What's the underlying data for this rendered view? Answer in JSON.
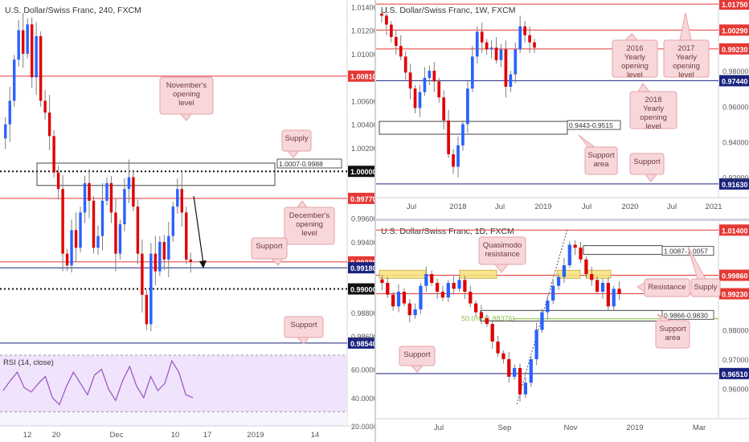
{
  "colors": {
    "up": "#2962ff",
    "down": "#e00000",
    "wick": "#7f7f7f",
    "resistance": "#e53935",
    "support": "#1a237e",
    "note_bg": "#f8d7da",
    "note_border": "#e4a2a7",
    "note_text": "#6d3a3a",
    "zone_border": "#444444",
    "yellow": "#f7e27b",
    "green": "#8bc34a",
    "rsi": "#9c4fc0",
    "rsi_bg": "#efe4fb"
  },
  "panels": {
    "h4": {
      "title": "U.S. Dollar/Swiss Franc, 240, FXCM",
      "x_labels": [
        "12",
        "20",
        "Dec",
        "10",
        "17",
        "2019",
        "14"
      ],
      "y_ticks": [
        "1.01400",
        "1.01200",
        "1.01000",
        "1.00600",
        "1.00400",
        "1.00200",
        "0.99600",
        "0.99400",
        "0.98800",
        "0.98600"
      ],
      "levels": [
        {
          "price": "1.00810",
          "color": "#e53935",
          "bold": false
        },
        {
          "price": "1.00000",
          "color": "#111111",
          "bold": true
        },
        {
          "price": "0.99770",
          "color": "#e53935",
          "bold": false
        },
        {
          "price": "0.99230",
          "color": "#e53935",
          "bold": false
        },
        {
          "price": "0.99180",
          "color": "#1a237e",
          "bold": false
        },
        {
          "price": "0.99000",
          "color": "#111111",
          "bold": true
        },
        {
          "price": "0.98540",
          "color": "#1a237e",
          "bold": false
        }
      ],
      "zone_label": "1.0007-0.9988",
      "notes": [
        "November's opening level",
        "Supply",
        "December's opening level",
        "Support",
        "Support"
      ],
      "rsi": {
        "title": "RSI (14, close)",
        "ticks": [
          "60.0000",
          "40.0000",
          "20.0000"
        ]
      }
    },
    "w1": {
      "title": "U.S. Dollar/Swiss Franc, 1W, FXCM",
      "x_labels": [
        "Jul",
        "2018",
        "Jul",
        "2019",
        "Jul",
        "2020",
        "Jul",
        "2021"
      ],
      "y_ticks": [
        "0.98000",
        "0.96000",
        "0.94000",
        "0.92000"
      ],
      "levels": [
        {
          "price": "1.01750",
          "color": "#e53935"
        },
        {
          "price": "1.00290",
          "color": "#e53935"
        },
        {
          "price": "0.99230",
          "color": "#e53935"
        },
        {
          "price": "0.97440",
          "color": "#1a237e"
        },
        {
          "price": "0.91630",
          "color": "#1a237e"
        }
      ],
      "zone_label": "0.9443-0.9515",
      "notes": [
        "2016 Yearly opening level",
        "2017 Yearly opening level",
        "2018 Yearly opening level",
        "Support area",
        "Support"
      ]
    },
    "d1": {
      "title": "U.S. Dollar/Swiss Franc, 1D, FXCM",
      "x_labels": [
        "Jul",
        "Sep",
        "Nov",
        "2019",
        "Mar"
      ],
      "y_ticks": [
        "0.98000",
        "0.97000",
        "0.96000"
      ],
      "levels": [
        {
          "price": "1.01400",
          "color": "#e53935"
        },
        {
          "price": "0.99860",
          "color": "#e53935"
        },
        {
          "price": "0.99230",
          "color": "#e53935"
        },
        {
          "price": "0.96510",
          "color": "#1a237e"
        }
      ],
      "zone_labels": [
        "1.0087-1.0057",
        "0.9866-0.9830"
      ],
      "fib_label": "50.0% (0.98376)",
      "notes": [
        "Quasimodo resistance",
        "Resistance",
        "Supply",
        "Support area",
        "Support"
      ]
    }
  },
  "chart_data": [
    {
      "type": "candlestick",
      "title": "U.S. Dollar/Swiss Franc, 240, FXCM",
      "x_tick_labels": [
        "12",
        "20",
        "Dec",
        "10",
        "17",
        "2019",
        "14"
      ],
      "ylim": [
        0.9845,
        1.0143
      ],
      "close_path": [
        1.004,
        1.006,
        1.0095,
        1.012,
        1.01,
        1.0125,
        1.008,
        1.0115,
        1.006,
        1.005,
        1.003,
        0.9999,
        0.9985,
        0.993,
        0.992,
        0.995,
        0.9935,
        0.9965,
        0.999,
        0.9975,
        0.9935,
        0.9945,
        0.9975,
        0.999,
        0.9965,
        0.993,
        0.9955,
        0.9985,
        0.9995,
        0.997,
        0.993,
        0.9895,
        0.987,
        0.993,
        0.9915,
        0.994,
        0.9925,
        0.9945,
        0.997,
        0.9985,
        0.9965,
        0.9925,
        0.9923
      ]
    },
    {
      "type": "line",
      "title": "RSI (14, close)",
      "ylim": [
        20,
        70
      ],
      "values": [
        45,
        52,
        58,
        47,
        44,
        50,
        55,
        40,
        35,
        48,
        58,
        50,
        42,
        56,
        60,
        46,
        38,
        52,
        62,
        48,
        40,
        55,
        45,
        50,
        66,
        58,
        42,
        40
      ]
    },
    {
      "type": "candlestick",
      "title": "U.S. Dollar/Swiss Franc, 1W, FXCM",
      "x_tick_labels": [
        "Jul",
        "2018",
        "Jul",
        "2019",
        "Jul",
        "2020",
        "Jul",
        "2021"
      ],
      "ylim": [
        0.914,
        1.018
      ],
      "close_path": [
        1.011,
        1.006,
        0.999,
        0.994,
        0.988,
        0.979,
        0.97,
        0.959,
        0.968,
        0.976,
        0.98,
        0.974,
        0.965,
        0.952,
        0.933,
        0.926,
        0.938,
        0.95,
        0.97,
        0.988,
        1.002,
        0.996,
        0.992,
        0.993,
        0.986,
        0.992,
        0.971,
        0.978,
        0.992,
        1.005,
        1.0,
        0.996,
        0.993
      ]
    },
    {
      "type": "candlestick",
      "title": "U.S. Dollar/Swiss Franc, 1D, FXCM",
      "x_tick_labels": [
        "Jul",
        "Sep",
        "Nov",
        "2019",
        "Mar"
      ],
      "ylim": [
        0.953,
        1.016
      ],
      "close_path": [
        0.996,
        0.992,
        0.988,
        0.993,
        0.989,
        0.985,
        0.987,
        0.995,
        0.999,
        0.996,
        0.993,
        0.991,
        0.996,
        0.994,
        0.997,
        0.993,
        0.989,
        0.986,
        0.984,
        0.982,
        0.976,
        0.972,
        0.97,
        0.964,
        0.967,
        0.958,
        0.962,
        0.97,
        0.98,
        0.986,
        0.99,
        0.995,
        0.998,
        1.002,
        1.009,
        1.008,
        1.004,
        0.999,
        0.997,
        0.993,
        0.996,
        0.988,
        0.994,
        0.9923
      ]
    }
  ]
}
